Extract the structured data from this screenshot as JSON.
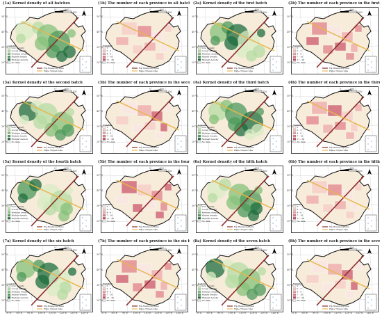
{
  "panels": [
    {
      "label": "(1a)",
      "title": "Kernel density of all batches",
      "type": "density"
    },
    {
      "label": "(1b)",
      "title": "The number of each province in all batches",
      "type": "count"
    },
    {
      "label": "(2a)",
      "title": "Kernel density of the first batch",
      "type": "density"
    },
    {
      "label": "(2b)",
      "title": "The number of each province in the first batch",
      "type": "count"
    },
    {
      "label": "(3a)",
      "title": "Kernel density of the second batch",
      "type": "density"
    },
    {
      "label": "(3b)",
      "title": "The number of each province in the second batch",
      "type": "count"
    },
    {
      "label": "(4a)",
      "title": "Kernel density of the third batch",
      "type": "density"
    },
    {
      "label": "(4b)",
      "title": "The number of each province in the third batch",
      "type": "count"
    },
    {
      "label": "(5a)",
      "title": "Kernel density of the fourth batch",
      "type": "density"
    },
    {
      "label": "(5b)",
      "title": "The number of each province in the fourth batch",
      "type": "count"
    },
    {
      "label": "(6a)",
      "title": "Kernel density of the fifth batch",
      "type": "density"
    },
    {
      "label": "(6b)",
      "title": "The number of each province in the fifth batch",
      "type": "count"
    },
    {
      "label": "(7a)",
      "title": "Kernel density of the six batch",
      "type": "density"
    },
    {
      "label": "(7b)",
      "title": "The number of each province in the six batch",
      "type": "count"
    },
    {
      "label": "(8a)",
      "title": "Kernel density of the seven batch",
      "type": "density"
    },
    {
      "label": "(8b)",
      "title": "The number of each province in the seven batch",
      "type": "count"
    }
  ],
  "axes": {
    "lon_ticks": [
      "70°E",
      "80°E",
      "90°E",
      "100°E",
      "110°E",
      "120°E",
      "130°E",
      "140°E"
    ],
    "lat_ticks": [
      "50°N",
      "40°N",
      "30°N",
      "20°N"
    ]
  },
  "scale": {
    "value": "800",
    "unit": "KM",
    "zero": "0"
  },
  "legend": {
    "title": "Legend",
    "number_title": "Number",
    "density_items": [
      "Low density",
      "Lower density",
      "Medium density",
      "Higher density",
      "Highest density",
      "No data"
    ],
    "count_items": [
      "1",
      "2 - 3",
      "4 - 6",
      "7 - 10",
      "11 - 20",
      "No data"
    ],
    "lines": [
      "Hu Huanyong Line",
      "Hebe Tingen Line"
    ]
  },
  "colors": {
    "density": [
      "#d9ecc6",
      "#b6dca3",
      "#86c17a",
      "#4e9a5b",
      "#1f6e3f"
    ],
    "count": [
      "#fbe7e6",
      "#f6c9c6",
      "#efa4a6",
      "#e27b86",
      "#c94f66"
    ],
    "base": "#f6ecd9",
    "hu_line": "#8b2a2a",
    "hebe_line": "#e8b64c"
  }
}
